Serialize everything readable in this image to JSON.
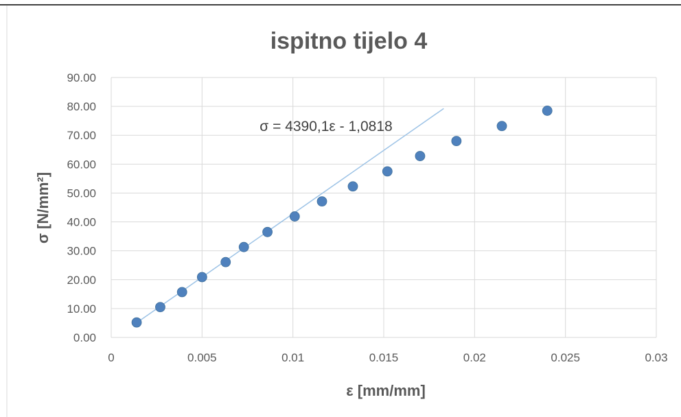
{
  "chart_data": {
    "type": "scatter",
    "title": "ispitno tijelo 4",
    "xlabel": "ε [mm/mm]",
    "ylabel": "σ [N/mm²]",
    "xlim": [
      0,
      0.03
    ],
    "ylim": [
      0,
      90
    ],
    "x_ticks": [
      "0",
      "0.005",
      "0.01",
      "0.015",
      "0.02",
      "0.025",
      "0.03"
    ],
    "y_ticks": [
      "0.00",
      "10.00",
      "20.00",
      "30.00",
      "40.00",
      "50.00",
      "60.00",
      "70.00",
      "80.00",
      "90.00"
    ],
    "grid": true,
    "legend": "none",
    "series": [
      {
        "type": "scatter",
        "color": "#4f81bd",
        "points": [
          {
            "x": 0.0014,
            "y": 5.2
          },
          {
            "x": 0.0027,
            "y": 10.5
          },
          {
            "x": 0.0039,
            "y": 15.7
          },
          {
            "x": 0.005,
            "y": 20.9
          },
          {
            "x": 0.0063,
            "y": 26.1
          },
          {
            "x": 0.0073,
            "y": 31.3
          },
          {
            "x": 0.0086,
            "y": 36.5
          },
          {
            "x": 0.0101,
            "y": 41.9
          },
          {
            "x": 0.0116,
            "y": 47.1
          },
          {
            "x": 0.0133,
            "y": 52.3
          },
          {
            "x": 0.0152,
            "y": 57.5
          },
          {
            "x": 0.017,
            "y": 62.8
          },
          {
            "x": 0.019,
            "y": 68.0
          },
          {
            "x": 0.0215,
            "y": 73.2
          },
          {
            "x": 0.024,
            "y": 78.5
          }
        ]
      }
    ],
    "trendline": {
      "type": "linear",
      "equation": "σ = 4390,1ε - 1,0818",
      "slope": 4390.1,
      "intercept": -1.0818,
      "x_range": [
        0.0014,
        0.0183
      ],
      "color": "#9dc3e6"
    }
  }
}
